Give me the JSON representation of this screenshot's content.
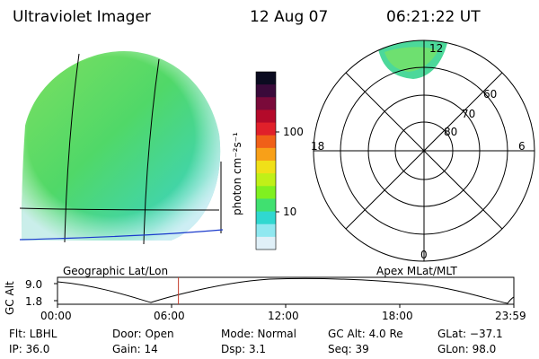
{
  "header": {
    "instrument": "Ultraviolet Imager",
    "date": "12 Aug 07",
    "time": "06:21:22 UT"
  },
  "colorbar": {
    "unit_label": "photon cm⁻²s⁻¹",
    "ticks": [
      "100",
      "10"
    ],
    "colors": [
      "#0b0b20",
      "#3a0a3a",
      "#7a0a3a",
      "#b40a2a",
      "#e0202a",
      "#f06018",
      "#f8a018",
      "#f0e018",
      "#c0f018",
      "#80f020",
      "#40e070",
      "#30d8d0",
      "#90e8f0",
      "#e0f0f8"
    ]
  },
  "geo_panel": {
    "label": "Geographic Lat/Lon"
  },
  "polar_panel": {
    "label": "Apex MLat/MLT",
    "mlt_labels": {
      "top": "12",
      "left": "18",
      "right": "6",
      "bottom": "0"
    },
    "lat_labels": [
      "60",
      "70",
      "80"
    ]
  },
  "timeline": {
    "ylabel": "GC Alt",
    "yticks": [
      "9.0",
      "1.8"
    ],
    "xticks": [
      "00:00",
      "06:00",
      "12:00",
      "18:00",
      "23:59"
    ],
    "current_time_fraction": 0.265
  },
  "status": {
    "flt": "Flt: LBHL",
    "ip": "IP: 36.0",
    "door": "Door: Open",
    "gain": "Gain: 14",
    "mode": "Mode: Normal",
    "dsp": "Dsp:    3.1",
    "gc_alt": "GC Alt: 4.0 Re",
    "seq": "Seq: 39",
    "glat": "GLat: −37.1",
    "glon": "GLon: 98.0"
  }
}
